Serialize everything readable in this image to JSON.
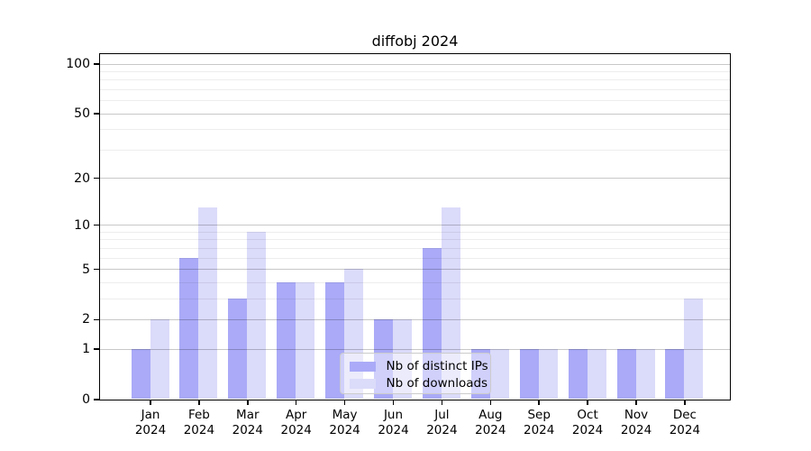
{
  "title": "diffobj 2024",
  "chart_data": {
    "type": "bar",
    "title": "diffobj 2024",
    "categories": [
      "Jan",
      "Feb",
      "Mar",
      "Apr",
      "May",
      "Jun",
      "Jul",
      "Aug",
      "Sep",
      "Oct",
      "Nov",
      "Dec"
    ],
    "x_year": "2024",
    "series": [
      {
        "name": "Nb of distinct IPs",
        "color": "#aaaaf8",
        "values": [
          1,
          6,
          3,
          4,
          4,
          2,
          7,
          1,
          1,
          1,
          1,
          1
        ]
      },
      {
        "name": "Nb of downloads",
        "color": "#dbdbfa",
        "values": [
          2,
          13,
          9,
          4,
          5,
          2,
          13,
          1,
          1,
          1,
          1,
          3
        ]
      }
    ],
    "xlabel": "",
    "ylabel": "",
    "y_axis": {
      "scale": "log1p",
      "tick_values": [
        0,
        1,
        2,
        5,
        10,
        20,
        50,
        100
      ],
      "tick_labels": [
        "0",
        "1",
        "2",
        "5",
        "10",
        "20",
        "50",
        "100"
      ],
      "minor_gridlines": [
        3,
        4,
        6,
        7,
        8,
        9,
        30,
        40,
        60,
        70,
        80,
        90
      ],
      "ylim": [
        0,
        115
      ],
      "grid": true
    },
    "legend": {
      "position": "inside-bottom-center"
    }
  }
}
